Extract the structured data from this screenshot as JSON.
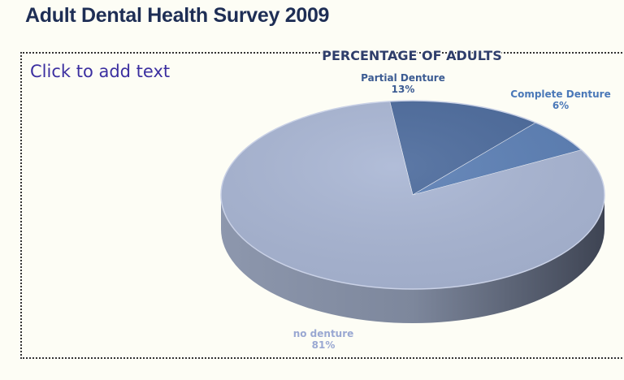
{
  "slide": {
    "title": "Adult Dental Health Survey 2009",
    "placeholder_text": "Click to add text"
  },
  "chart_data": {
    "type": "pie",
    "title": "PERCENTAGE OF ADULTS",
    "categories": [
      "no denture",
      "Partial Denture",
      "Complete Denture"
    ],
    "values": [
      81,
      13,
      6
    ],
    "value_labels": [
      "81%",
      "13%",
      "6%"
    ],
    "colors": [
      "#a9b6d4",
      "#4b6a9c",
      "#5b7fb5"
    ],
    "label_colors": [
      "#9aa8d2",
      "#3b5b92",
      "#4a78b8"
    ],
    "legend": "none",
    "style": "3d"
  },
  "colors": {
    "background": "#fdfdf5",
    "title": "#1e2e55",
    "placeholder_text": "#3b2fa0"
  }
}
